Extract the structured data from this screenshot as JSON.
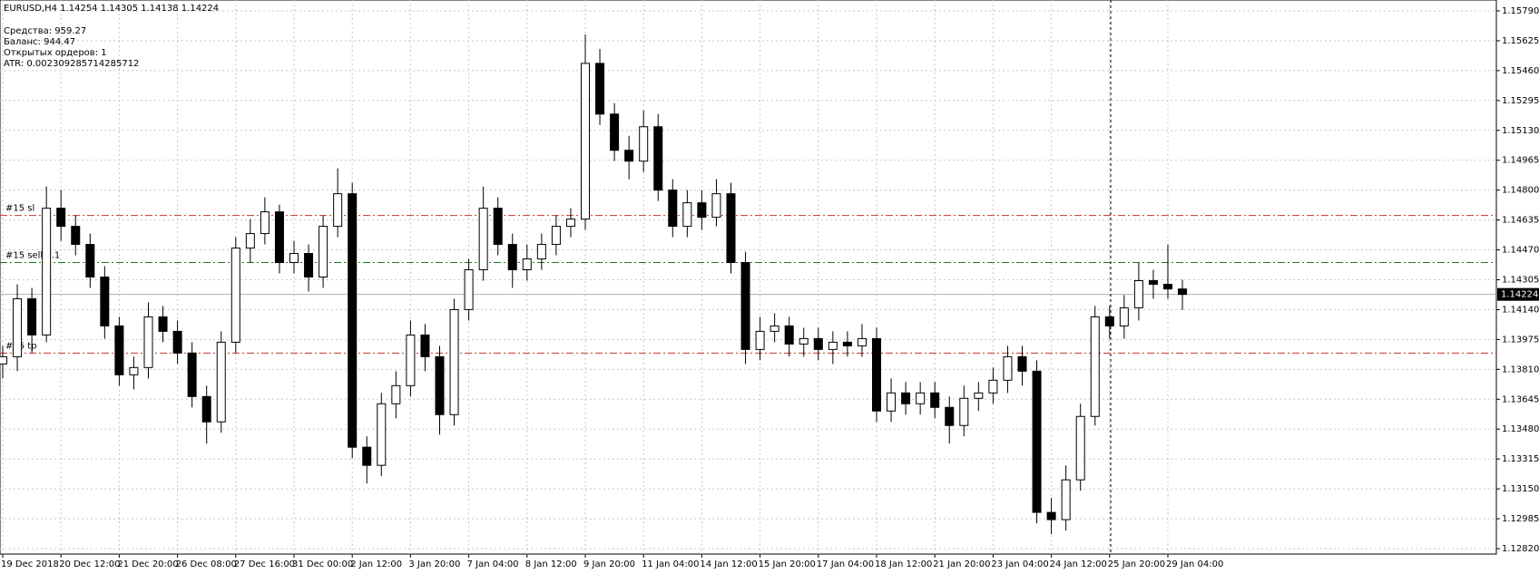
{
  "chart_data": {
    "type": "candlestick",
    "title": "EURUSD,H4  1.14254 1.14305 1.14138 1.14224",
    "info": [
      "Средства: 959.27",
      "Баланс: 944.47",
      "Открытых ордеров: 1",
      " ATR: 0.002309285714285712"
    ],
    "categories": [
      "19 Dec 2018",
      null,
      null,
      null,
      "20 Dec 12:00",
      null,
      null,
      null,
      "21 Dec 20:00",
      null,
      null,
      null,
      "26 Dec 08:00",
      null,
      null,
      null,
      "27 Dec 16:00",
      null,
      null,
      null,
      "31 Dec 00:00",
      null,
      null,
      null,
      "2 Jan 12:00",
      null,
      null,
      null,
      "3 Jan 20:00",
      null,
      null,
      null,
      "7 Jan 04:00",
      null,
      null,
      null,
      "8 Jan 12:00",
      null,
      null,
      null,
      "9 Jan 20:00",
      null,
      null,
      null,
      "11 Jan 04:00",
      null,
      null,
      null,
      "14 Jan 12:00",
      null,
      null,
      null,
      "15 Jan 20:00",
      null,
      null,
      null,
      "17 Jan 04:00",
      null,
      null,
      null,
      "18 Jan 12:00",
      null,
      null,
      null,
      "21 Jan 20:00",
      null,
      null,
      null,
      "23 Jan 04:00",
      null,
      null,
      null,
      "24 Jan 12:00",
      null,
      null,
      null,
      "25 Jan 20:00",
      null,
      null,
      null,
      "29 Jan 04:00",
      null
    ],
    "open": [
      1.1384,
      1.1388,
      1.142,
      1.14,
      1.147,
      1.146,
      1.145,
      1.1432,
      1.1405,
      1.1378,
      1.1382,
      1.141,
      1.1402,
      1.139,
      1.1366,
      1.1352,
      1.1396,
      1.1448,
      1.1456,
      1.1468,
      1.144,
      1.1445,
      1.1432,
      1.146,
      1.1478,
      1.1338,
      1.1328,
      1.1362,
      1.1372,
      1.14,
      1.1388,
      1.1356,
      1.1414,
      1.1436,
      1.147,
      1.145,
      1.1436,
      1.1442,
      1.145,
      1.146,
      1.1464,
      1.155,
      1.1522,
      1.1502,
      1.1496,
      1.1515,
      1.148,
      1.146,
      1.1473,
      1.1465,
      1.1478,
      1.144,
      1.1392,
      1.1402,
      1.1405,
      1.1395,
      1.1398,
      1.1392,
      1.1396,
      1.1394,
      1.1398,
      1.1358,
      1.1368,
      1.1362,
      1.1368,
      1.136,
      1.135,
      1.1365,
      1.1368,
      1.1375,
      1.1388,
      1.138,
      1.1302,
      1.1298,
      1.132,
      1.1355,
      1.141,
      1.1405,
      1.1415,
      1.143,
      1.1428,
      1.14254
    ],
    "high": [
      1.1394,
      1.1428,
      1.1426,
      1.1482,
      1.148,
      1.1466,
      1.1456,
      1.1438,
      1.141,
      1.1388,
      1.1418,
      1.1416,
      1.1408,
      1.1396,
      1.1372,
      1.1402,
      1.1454,
      1.1464,
      1.1476,
      1.1472,
      1.1452,
      1.145,
      1.1466,
      1.1492,
      1.1484,
      1.1344,
      1.1368,
      1.138,
      1.1408,
      1.1406,
      1.1394,
      1.142,
      1.1442,
      1.1482,
      1.1476,
      1.1456,
      1.145,
      1.1456,
      1.1466,
      1.147,
      1.1566,
      1.1558,
      1.1528,
      1.151,
      1.1524,
      1.1522,
      1.1486,
      1.148,
      1.148,
      1.1486,
      1.1484,
      1.1446,
      1.141,
      1.1412,
      1.141,
      1.1404,
      1.1404,
      1.1402,
      1.1402,
      1.1406,
      1.1404,
      1.1376,
      1.1374,
      1.1374,
      1.1374,
      1.1366,
      1.1372,
      1.1374,
      1.1382,
      1.1394,
      1.1394,
      1.1386,
      1.131,
      1.1328,
      1.1362,
      1.1416,
      1.1416,
      1.1422,
      1.144,
      1.1436,
      1.145,
      1.14305
    ],
    "low": [
      1.1376,
      1.138,
      1.139,
      1.1396,
      1.1452,
      1.1444,
      1.1426,
      1.1398,
      1.1372,
      1.137,
      1.1376,
      1.1396,
      1.1384,
      1.136,
      1.134,
      1.1346,
      1.139,
      1.144,
      1.145,
      1.1434,
      1.1434,
      1.1424,
      1.1426,
      1.1454,
      1.1332,
      1.1318,
      1.1322,
      1.1354,
      1.1366,
      1.138,
      1.1345,
      1.135,
      1.1408,
      1.143,
      1.1444,
      1.1426,
      1.143,
      1.1436,
      1.1444,
      1.1454,
      1.1458,
      1.1516,
      1.1496,
      1.1486,
      1.149,
      1.1474,
      1.1454,
      1.1454,
      1.1458,
      1.146,
      1.1434,
      1.1384,
      1.1386,
      1.1396,
      1.1388,
      1.1388,
      1.1386,
      1.1384,
      1.1388,
      1.1388,
      1.1352,
      1.1352,
      1.1356,
      1.1356,
      1.1354,
      1.134,
      1.1344,
      1.1358,
      1.1362,
      1.1368,
      1.1372,
      1.1296,
      1.129,
      1.1292,
      1.1314,
      1.135,
      1.1398,
      1.1398,
      1.1408,
      1.142,
      1.142,
      1.14138
    ],
    "close": [
      1.1388,
      1.142,
      1.14,
      1.147,
      1.146,
      1.145,
      1.1432,
      1.1405,
      1.1378,
      1.1382,
      1.141,
      1.1402,
      1.139,
      1.1366,
      1.1352,
      1.1396,
      1.1448,
      1.1456,
      1.1468,
      1.144,
      1.1445,
      1.1432,
      1.146,
      1.1478,
      1.1338,
      1.1328,
      1.1362,
      1.1372,
      1.14,
      1.1388,
      1.1356,
      1.1414,
      1.1436,
      1.147,
      1.145,
      1.1436,
      1.1442,
      1.145,
      1.146,
      1.1464,
      1.155,
      1.1522,
      1.1502,
      1.1496,
      1.1515,
      1.148,
      1.146,
      1.1473,
      1.1465,
      1.1478,
      1.144,
      1.1392,
      1.1402,
      1.1405,
      1.1395,
      1.1398,
      1.1392,
      1.1396,
      1.1394,
      1.1398,
      1.1358,
      1.1368,
      1.1362,
      1.1368,
      1.136,
      1.135,
      1.1365,
      1.1368,
      1.1375,
      1.1388,
      1.138,
      1.1302,
      1.1298,
      1.132,
      1.1355,
      1.141,
      1.1405,
      1.1415,
      1.143,
      1.1428,
      1.14254,
      1.14224
    ],
    "ylim": [
      1.1279,
      1.1585
    ],
    "yticks": [
      {
        "value": 1.1579,
        "label": "1.15790"
      },
      {
        "value": 1.15625,
        "label": "1.15625"
      },
      {
        "value": 1.1546,
        "label": "1.15460"
      },
      {
        "value": 1.15295,
        "label": "1.15295"
      },
      {
        "value": 1.1513,
        "label": "1.15130"
      },
      {
        "value": 1.14965,
        "label": "1.14965"
      },
      {
        "value": 1.148,
        "label": "1.14800"
      },
      {
        "value": 1.14635,
        "label": "1.14635"
      },
      {
        "value": 1.1447,
        "label": "1.14470"
      },
      {
        "value": 1.14305,
        "label": "1.14305"
      },
      {
        "value": 1.1414,
        "label": "1.14140"
      },
      {
        "value": 1.13975,
        "label": "1.13975"
      },
      {
        "value": 1.1381,
        "label": "1.13810"
      },
      {
        "value": 1.13645,
        "label": "1.13645"
      },
      {
        "value": 1.1348,
        "label": "1.13480"
      },
      {
        "value": 1.13315,
        "label": "1.13315"
      },
      {
        "value": 1.1315,
        "label": "1.13150"
      },
      {
        "value": 1.12985,
        "label": "1.12985"
      },
      {
        "value": 1.1282,
        "label": "1.12820"
      }
    ],
    "current_price": {
      "value": 1.14224,
      "label": "1.14224"
    },
    "levels": [
      {
        "label": "#15 sl",
        "value": 1.1466,
        "color": "#c0392b"
      },
      {
        "label": "#15 sell 0.1",
        "value": 1.144,
        "color": "#1e7b1e"
      },
      {
        "label": "#15 tp",
        "value": 1.139,
        "color": "#c0392b"
      }
    ],
    "grid": true
  }
}
